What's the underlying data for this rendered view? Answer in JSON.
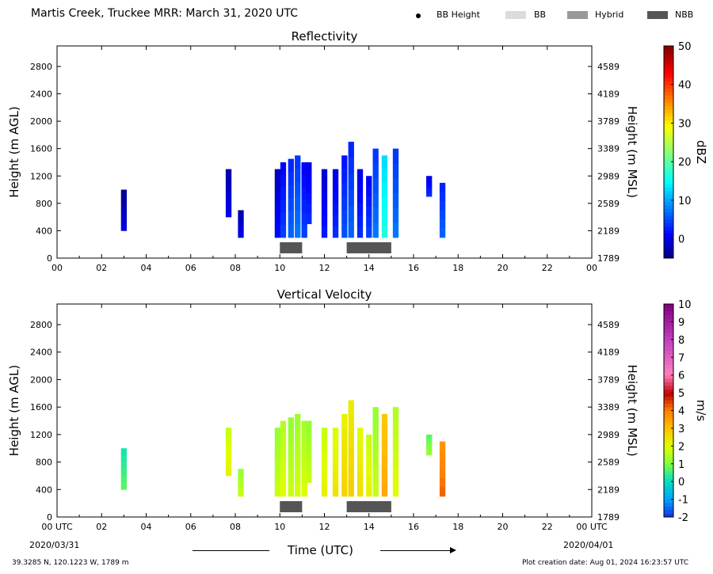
{
  "header": {
    "title": "Martis Creek, Truckee MRR:  March 31, 2020 UTC",
    "legend": [
      {
        "label": "BB Height",
        "kind": "dot",
        "color": "#000000"
      },
      {
        "label": "BB",
        "kind": "swatch",
        "color": "#dcdcdc"
      },
      {
        "label": "Hybrid",
        "kind": "swatch",
        "color": "#999999"
      },
      {
        "label": "NBB",
        "kind": "swatch",
        "color": "#555555"
      }
    ]
  },
  "footer": {
    "start_date": "2020/03/31",
    "end_date": "2020/04/01",
    "xlabel": "Time (UTC)",
    "location": "39.3285 N, 120.1223 W, 1789 m",
    "creation": "Plot creation date: Aug 01, 2024 16:23:57 UTC"
  },
  "chart_data": [
    {
      "type": "heatmap",
      "title": "Reflectivity",
      "ylabel": "Height (m AGL)",
      "y2label": "Height (m MSL)",
      "xlim": [
        0,
        24
      ],
      "ylim": [
        0,
        3100
      ],
      "xticks": [
        "00",
        "02",
        "04",
        "06",
        "08",
        "10",
        "12",
        "14",
        "16",
        "18",
        "20",
        "22",
        "00"
      ],
      "yticks": [
        0,
        400,
        800,
        1200,
        1600,
        2000,
        2400,
        2800
      ],
      "y2ticks": [
        1789,
        2189,
        2589,
        2989,
        3389,
        3789,
        4189,
        4589
      ],
      "colorbar": {
        "label": "dBZ",
        "min": -5,
        "max": 50,
        "ticks": [
          0,
          10,
          20,
          30,
          40,
          50
        ],
        "colormap": "jet"
      },
      "bands": [
        {
          "type": "NBB",
          "start": 10.0,
          "end": 11.0
        },
        {
          "type": "NBB",
          "start": 13.0,
          "end": 15.0
        }
      ],
      "columns": [
        {
          "t": 3.0,
          "bottom": 400,
          "top": 1000,
          "value": -2
        },
        {
          "t": 7.7,
          "bottom": 600,
          "top": 1300,
          "value": -1
        },
        {
          "t": 8.25,
          "bottom": 300,
          "top": 700,
          "value": -1
        },
        {
          "t": 9.9,
          "bottom": 300,
          "top": 1300,
          "value": 0
        },
        {
          "t": 10.15,
          "bottom": 300,
          "top": 1400,
          "value": 3
        },
        {
          "t": 10.5,
          "bottom": 300,
          "top": 1450,
          "value": 5
        },
        {
          "t": 10.8,
          "bottom": 300,
          "top": 1500,
          "value": 6
        },
        {
          "t": 11.1,
          "bottom": 300,
          "top": 1400,
          "value": 3
        },
        {
          "t": 11.3,
          "bottom": 500,
          "top": 1400,
          "value": 2
        },
        {
          "t": 12.0,
          "bottom": 300,
          "top": 1300,
          "value": 1
        },
        {
          "t": 12.5,
          "bottom": 300,
          "top": 1300,
          "value": 2
        },
        {
          "t": 12.9,
          "bottom": 300,
          "top": 1500,
          "value": 4
        },
        {
          "t": 13.2,
          "bottom": 300,
          "top": 1700,
          "value": 5
        },
        {
          "t": 13.6,
          "bottom": 300,
          "top": 1300,
          "value": 2
        },
        {
          "t": 14.0,
          "bottom": 300,
          "top": 1200,
          "value": 3
        },
        {
          "t": 14.3,
          "bottom": 300,
          "top": 1600,
          "value": 6
        },
        {
          "t": 14.7,
          "bottom": 300,
          "top": 1500,
          "value": 15
        },
        {
          "t": 15.2,
          "bottom": 300,
          "top": 1600,
          "value": 6
        },
        {
          "t": 16.7,
          "bottom": 900,
          "top": 1200,
          "value": 2
        },
        {
          "t": 17.3,
          "bottom": 300,
          "top": 1100,
          "value": 5
        }
      ]
    },
    {
      "type": "heatmap",
      "title": "Vertical Velocity",
      "ylabel": "Height (m AGL)",
      "y2label": "Height (m MSL)",
      "xlim": [
        0,
        24
      ],
      "ylim": [
        0,
        3100
      ],
      "xticks": [
        "00 UTC",
        "02",
        "04",
        "06",
        "08",
        "10",
        "12",
        "14",
        "16",
        "18",
        "20",
        "22",
        "00 UTC"
      ],
      "yticks": [
        0,
        400,
        800,
        1200,
        1600,
        2000,
        2400,
        2800
      ],
      "y2ticks": [
        1789,
        2189,
        2589,
        2989,
        3389,
        3789,
        4189,
        4589
      ],
      "colorbar": {
        "label": "m/s",
        "min": -2,
        "max": 10,
        "ticks": [
          -2,
          -1,
          0,
          1,
          2,
          3,
          4,
          5,
          6,
          7,
          8,
          9,
          10
        ],
        "colormap": "velocity"
      },
      "bands": [
        {
          "type": "NBB",
          "start": 10.0,
          "end": 11.0
        },
        {
          "type": "NBB",
          "start": 13.0,
          "end": 15.0
        }
      ],
      "columns": [
        {
          "t": 3.0,
          "bottom": 400,
          "top": 1000,
          "value": 0.5
        },
        {
          "t": 7.7,
          "bottom": 600,
          "top": 1300,
          "value": 2.0
        },
        {
          "t": 8.25,
          "bottom": 300,
          "top": 700,
          "value": 1.5
        },
        {
          "t": 9.9,
          "bottom": 300,
          "top": 1300,
          "value": 1.5
        },
        {
          "t": 10.15,
          "bottom": 300,
          "top": 1400,
          "value": 1.8
        },
        {
          "t": 10.5,
          "bottom": 300,
          "top": 1450,
          "value": 1.5
        },
        {
          "t": 10.8,
          "bottom": 300,
          "top": 1500,
          "value": 1.6
        },
        {
          "t": 11.1,
          "bottom": 300,
          "top": 1400,
          "value": 1.7
        },
        {
          "t": 11.3,
          "bottom": 500,
          "top": 1400,
          "value": 1.5
        },
        {
          "t": 12.0,
          "bottom": 300,
          "top": 1300,
          "value": 2.0
        },
        {
          "t": 12.5,
          "bottom": 300,
          "top": 1300,
          "value": 2.2
        },
        {
          "t": 12.9,
          "bottom": 300,
          "top": 1500,
          "value": 2.5
        },
        {
          "t": 13.2,
          "bottom": 300,
          "top": 1700,
          "value": 2.6
        },
        {
          "t": 13.6,
          "bottom": 300,
          "top": 1300,
          "value": 2.3
        },
        {
          "t": 14.0,
          "bottom": 300,
          "top": 1200,
          "value": 2.0
        },
        {
          "t": 14.3,
          "bottom": 300,
          "top": 1600,
          "value": 1.5
        },
        {
          "t": 14.7,
          "bottom": 300,
          "top": 1500,
          "value": 3.2
        },
        {
          "t": 15.2,
          "bottom": 300,
          "top": 1600,
          "value": 1.8
        },
        {
          "t": 16.7,
          "bottom": 900,
          "top": 1200,
          "value": 1.0
        },
        {
          "t": 17.3,
          "bottom": 300,
          "top": 1100,
          "value": 4.0
        }
      ]
    }
  ]
}
